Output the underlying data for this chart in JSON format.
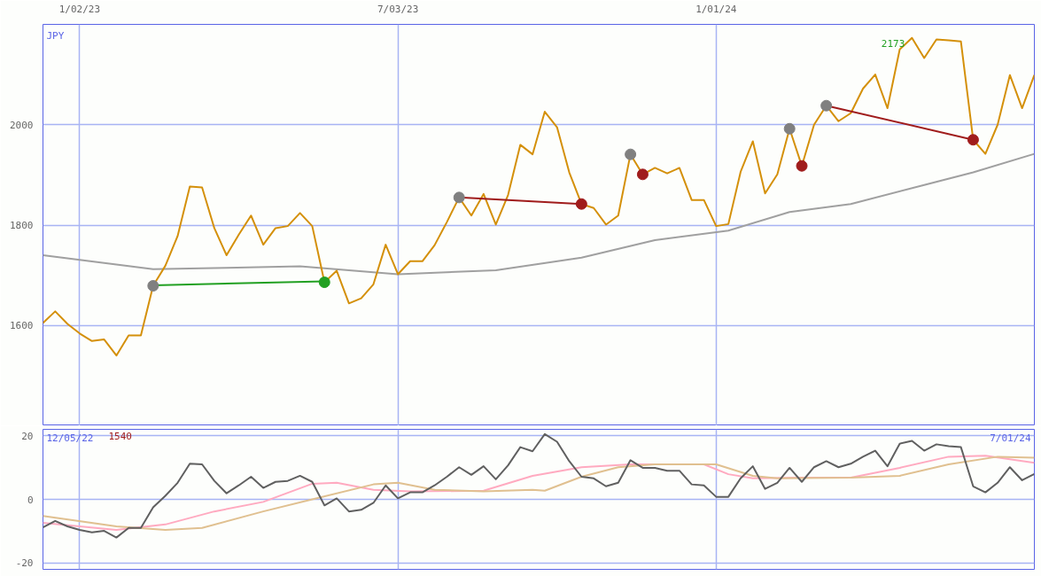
{
  "chart_data": [
    {
      "type": "line",
      "ylabel": "JPY",
      "grid": true,
      "line_style": "solid",
      "marker": "none",
      "x": [
        "2022-12-12",
        "2022-12-19",
        "2022-12-26",
        "2023-01-02",
        "2023-01-09",
        "2023-01-16",
        "2023-01-23",
        "2023-01-30",
        "2023-02-06",
        "2023-02-13",
        "2023-02-20",
        "2023-02-27",
        "2023-03-06",
        "2023-03-13",
        "2023-03-20",
        "2023-03-27",
        "2023-04-03",
        "2023-04-10",
        "2023-04-17",
        "2023-04-24",
        "2023-05-01",
        "2023-05-08",
        "2023-05-15",
        "2023-05-22",
        "2023-05-29",
        "2023-06-05",
        "2023-06-12",
        "2023-06-19",
        "2023-06-26",
        "2023-07-03",
        "2023-07-10",
        "2023-07-17",
        "2023-07-24",
        "2023-07-31",
        "2023-08-07",
        "2023-08-14",
        "2023-08-21",
        "2023-08-28",
        "2023-09-04",
        "2023-09-11",
        "2023-09-18",
        "2023-09-25",
        "2023-10-02",
        "2023-10-09",
        "2023-10-16",
        "2023-10-23",
        "2023-10-30",
        "2023-11-06",
        "2023-11-13",
        "2023-11-20",
        "2023-11-27",
        "2023-12-04",
        "2023-12-11",
        "2023-12-18",
        "2023-12-25",
        "2024-01-01",
        "2024-01-08",
        "2024-01-15",
        "2024-01-22",
        "2024-01-29",
        "2024-02-05",
        "2024-02-12",
        "2024-02-19",
        "2024-02-26",
        "2024-03-04",
        "2024-03-11",
        "2024-03-18",
        "2024-03-25",
        "2024-04-01",
        "2024-04-08",
        "2024-04-15",
        "2024-04-22",
        "2024-04-29",
        "2024-05-06",
        "2024-05-13",
        "2024-05-20",
        "2024-05-27",
        "2024-06-03",
        "2024-06-10",
        "2024-06-17",
        "2024-06-24",
        "2024-07-01"
      ],
      "xlim": [
        "2022-12-12",
        "2024-07-01"
      ],
      "xticks": [
        {
          "value": "2023-01-02",
          "label": "1/02/23"
        },
        {
          "value": "2023-07-03",
          "label": "7/03/23"
        },
        {
          "value": "2024-01-01",
          "label": "1/01/24"
        }
      ],
      "ylim": [
        1400,
        2200
      ],
      "yticks": [
        1600,
        1800,
        2000
      ],
      "series": [
        {
          "color": "#a0a0a0",
          "x": [
            "2022-12-12",
            "2023-02-13",
            "2023-03-27",
            "2023-05-08",
            "2023-07-03",
            "2023-08-28",
            "2023-10-16",
            "2023-11-27",
            "2024-01-08",
            "2024-02-12",
            "2024-03-18",
            "2024-04-29",
            "2024-05-27",
            "2024-07-01"
          ],
          "values": [
            1740,
            1712,
            1715,
            1718,
            1702,
            1710,
            1735,
            1770,
            1789,
            1826,
            1842,
            1880,
            1905,
            1942
          ]
        },
        {
          "color": "#d4900a",
          "values": [
            1605,
            1628,
            1603,
            1584,
            1569,
            1572,
            1540,
            1580,
            1580,
            1679,
            1719,
            1778,
            1877,
            1875,
            1794,
            1740,
            1781,
            1819,
            1761,
            1794,
            1798,
            1824,
            1798,
            1686,
            1709,
            1644,
            1654,
            1682,
            1761,
            1702,
            1728,
            1728,
            1760,
            1806,
            1855,
            1819,
            1862,
            1801,
            1860,
            1960,
            1941,
            2026,
            1995,
            1905,
            1842,
            1834,
            1801,
            1819,
            1941,
            1901,
            1914,
            1903,
            1914,
            1850,
            1850,
            1798,
            1802,
            1906,
            1967,
            1863,
            1901,
            1992,
            1918,
            2000,
            2038,
            2007,
            2023,
            2072,
            2100,
            2033,
            2150,
            2173,
            2133,
            2170,
            2168,
            2166,
            1970,
            1942,
            2000,
            2099,
            2033,
            2099
          ]
        },
        {
          "color": "#22a022",
          "x": [
            "2023-02-13",
            "2023-05-22"
          ],
          "values": [
            1680,
            1688
          ]
        },
        {
          "color": "#a01c1c",
          "x": [
            "2023-08-07",
            "2023-10-16"
          ],
          "values": [
            1855,
            1842
          ]
        },
        {
          "color": "#a01c1c",
          "x": [
            "2024-03-04",
            "2024-05-27"
          ],
          "values": [
            2038,
            1970
          ]
        },
        {
          "type": "scatter",
          "marker": "circle",
          "color": "#808080",
          "x": [
            "2023-02-13",
            "2023-08-07",
            "2023-11-13",
            "2024-02-12",
            "2024-03-04"
          ],
          "values": [
            1679,
            1855,
            1941,
            1992,
            2038
          ]
        },
        {
          "type": "scatter",
          "marker": "circle",
          "color": "#a01c1c",
          "x": [
            "2023-10-16",
            "2023-11-20",
            "2024-02-19",
            "2024-05-27"
          ],
          "values": [
            1842,
            1901,
            1918,
            1970
          ]
        },
        {
          "type": "scatter",
          "marker": "circle",
          "color": "#22a022",
          "x": [
            "2023-05-22"
          ],
          "values": [
            1686
          ]
        }
      ],
      "annotations": [
        {
          "text": "2173",
          "x": "2024-04-22",
          "y": 2173
        }
      ]
    },
    {
      "type": "line",
      "grid": true,
      "tick_labels": "y",
      "line_style": "solid",
      "marker": "none",
      "x": [
        "2022-12-12",
        "2022-12-19",
        "2022-12-26",
        "2023-01-02",
        "2023-01-09",
        "2023-01-16",
        "2023-01-23",
        "2023-01-30",
        "2023-02-06",
        "2023-02-13",
        "2023-02-20",
        "2023-02-27",
        "2023-03-06",
        "2023-03-13",
        "2023-03-20",
        "2023-03-27",
        "2023-04-03",
        "2023-04-10",
        "2023-04-17",
        "2023-04-24",
        "2023-05-01",
        "2023-05-08",
        "2023-05-15",
        "2023-05-22",
        "2023-05-29",
        "2023-06-05",
        "2023-06-12",
        "2023-06-19",
        "2023-06-26",
        "2023-07-03",
        "2023-07-10",
        "2023-07-17",
        "2023-07-24",
        "2023-07-31",
        "2023-08-07",
        "2023-08-14",
        "2023-08-21",
        "2023-08-28",
        "2023-09-04",
        "2023-09-11",
        "2023-09-18",
        "2023-09-25",
        "2023-10-02",
        "2023-10-09",
        "2023-10-16",
        "2023-10-23",
        "2023-10-30",
        "2023-11-06",
        "2023-11-13",
        "2023-11-20",
        "2023-11-27",
        "2023-12-04",
        "2023-12-11",
        "2023-12-18",
        "2023-12-25",
        "2024-01-01",
        "2024-01-08",
        "2024-01-15",
        "2024-01-22",
        "2024-01-29",
        "2024-02-05",
        "2024-02-12",
        "2024-02-19",
        "2024-02-26",
        "2024-03-04",
        "2024-03-11",
        "2024-03-18",
        "2024-03-25",
        "2024-04-01",
        "2024-04-08",
        "2024-04-15",
        "2024-04-22",
        "2024-04-29",
        "2024-05-06",
        "2024-05-13",
        "2024-05-20",
        "2024-05-27",
        "2024-06-03",
        "2024-06-10",
        "2024-06-17",
        "2024-06-24",
        "2024-07-01"
      ],
      "xlim": [
        "2022-12-12",
        "2024-07-01"
      ],
      "xticks": [
        {
          "value": "2023-01-02",
          "label": null
        },
        {
          "value": "2023-07-03",
          "label": null
        },
        {
          "value": "2024-01-01",
          "label": null
        }
      ],
      "ylim": [
        -22,
        22
      ],
      "yticks": [
        -20,
        0,
        20
      ],
      "series": [
        {
          "color": "#ffaac0",
          "x": [
            "2022-12-12",
            "2023-01-23",
            "2023-02-20",
            "2023-03-20",
            "2023-04-17",
            "2023-05-15",
            "2023-05-29",
            "2023-06-19",
            "2023-07-10",
            "2023-08-21",
            "2023-09-18",
            "2023-10-16",
            "2023-11-13",
            "2023-12-25",
            "2024-01-08",
            "2024-01-22",
            "2024-02-19",
            "2024-03-18",
            "2024-04-15",
            "2024-05-13",
            "2024-06-03",
            "2024-07-01"
          ],
          "values": [
            -7.4,
            -9.6,
            -7.9,
            -3.8,
            -0.8,
            4.9,
            5.2,
            3,
            2.5,
            2.7,
            7.4,
            10.1,
            11,
            11,
            7.9,
            6.6,
            6.8,
            6.8,
            9.9,
            13.4,
            13.7,
            11.5
          ]
        },
        {
          "color": "#e0c090",
          "x": [
            "2022-12-12",
            "2023-01-23",
            "2023-02-20",
            "2023-03-13",
            "2023-04-17",
            "2023-05-15",
            "2023-06-19",
            "2023-07-03",
            "2023-07-24",
            "2023-08-21",
            "2023-09-18",
            "2023-09-25",
            "2023-10-16",
            "2023-11-06",
            "2023-11-27",
            "2024-01-01",
            "2024-01-22",
            "2024-02-05",
            "2024-03-18",
            "2024-04-15",
            "2024-05-13",
            "2024-06-10",
            "2024-07-01"
          ],
          "values": [
            -5.2,
            -8.5,
            -9.6,
            -9,
            -3.8,
            0,
            4.7,
            5.2,
            3,
            2.5,
            3,
            2.7,
            7.1,
            10.1,
            11,
            11,
            7.4,
            6.6,
            6.8,
            7.4,
            11,
            13.4,
            13.1
          ]
        },
        {
          "color": "#606060",
          "values": [
            -8.8,
            -6.8,
            -8.5,
            -9.6,
            -10.4,
            -9.9,
            -12,
            -9,
            -9,
            -2.5,
            1.1,
            5.2,
            11.2,
            11,
            5.8,
            1.9,
            4.4,
            7.1,
            3.6,
            5.5,
            5.8,
            7.4,
            5.5,
            -1.9,
            0.3,
            -3.8,
            -3.3,
            -1.1,
            4.4,
            0.3,
            2.2,
            2.2,
            4.4,
            7.1,
            10.1,
            7.7,
            10.4,
            6.3,
            10.7,
            16.4,
            15.1,
            20.5,
            18.1,
            12,
            7.1,
            6.6,
            4.1,
            5.2,
            12.3,
            9.9,
            9.9,
            9,
            9,
            4.7,
            4.4,
            0.8,
            0.8,
            6.6,
            10.4,
            3.3,
            5.2,
            9.9,
            5.5,
            10.1,
            12,
            10.1,
            11.2,
            13.4,
            15.3,
            10.4,
            17.5,
            18.4,
            15.3,
            17.3,
            16.7,
            16.4,
            4.1,
            2.2,
            5.2,
            10.1,
            6,
            8
          ]
        }
      ],
      "annotations": [
        "12/05/22",
        "1540",
        "7/01/24"
      ]
    }
  ]
}
